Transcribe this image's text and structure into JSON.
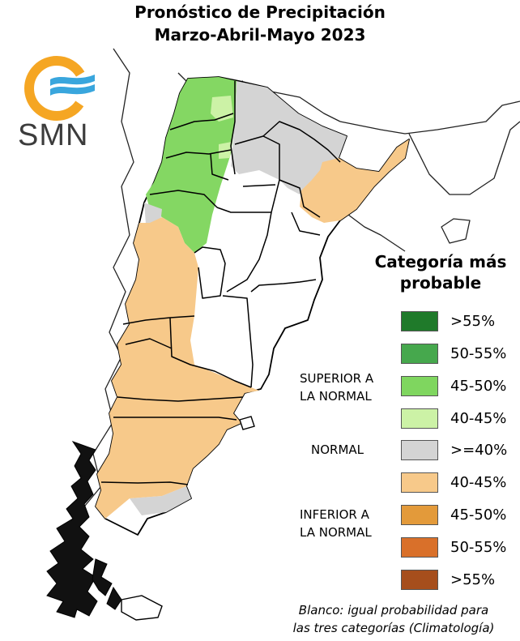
{
  "title": {
    "line1": "Pronóstico de Precipitación",
    "line2": "Marzo-Abril-Mayo 2023"
  },
  "logo": {
    "text": "SMN",
    "ring_color": "#f5a623",
    "wave_color": "#39a6dd"
  },
  "legend": {
    "title_line1": "Categoría más",
    "title_line2": "probable",
    "items": [
      {
        "label": ">55%",
        "color": "#1f7a2a"
      },
      {
        "label": "50-55%",
        "color": "#46a84d"
      },
      {
        "label": "45-50%",
        "color": "#7fd65f"
      },
      {
        "label": "40-45%",
        "color": "#ccf2a6"
      },
      {
        "label": ">=40%",
        "color": "#d4d4d4"
      },
      {
        "label": "40-45%",
        "color": "#f7c98a"
      },
      {
        "label": "45-50%",
        "color": "#e39a3a"
      },
      {
        "label": "50-55%",
        "color": "#d9702a"
      },
      {
        "label": ">55%",
        "color": "#a64e1c"
      }
    ]
  },
  "categories": {
    "superior_line1": "SUPERIOR A",
    "superior_line2": "LA NORMAL",
    "normal": "NORMAL",
    "inferior_line1": "INFERIOR A",
    "inferior_line2": "LA NORMAL"
  },
  "note": {
    "line1": "Blanco: igual probabilidad para",
    "line2": "las tres categorías (Climatología)"
  },
  "map_colors": {
    "green": "#84d763",
    "light_green": "#ccf2a6",
    "gray": "#d4d4d4",
    "orange": "#f7c98a",
    "neighbor_border": "#222222",
    "province_border": "#000000"
  }
}
